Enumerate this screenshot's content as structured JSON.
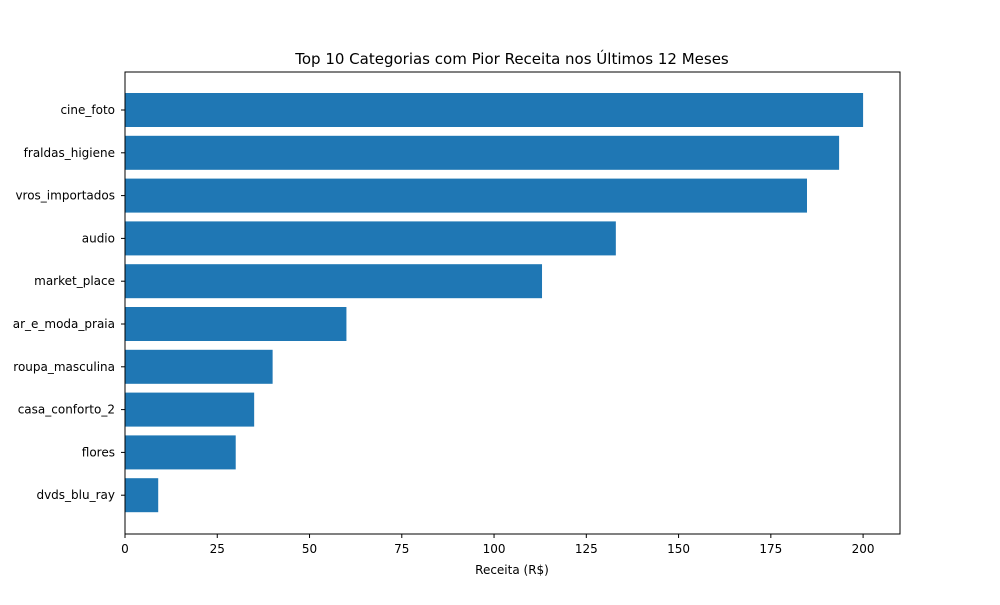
{
  "chart_data": {
    "type": "bar",
    "orientation": "horizontal",
    "title": "Top 10 Categorias com Pior Receita nos Últimos 12 Meses",
    "xlabel": "Receita (R$)",
    "ylabel": "",
    "categories": [
      "cine_foto",
      "fraldas_higiene",
      "livros_importados",
      "audio",
      "market_place",
      "fashion_roupa_e_moda_praia",
      "fashion_roupa_masculina",
      "casa_conforto_2",
      "flores",
      "dvds_blu_ray"
    ],
    "category_labels_visible": [
      "cine_foto",
      "fraldas_higiene",
      "vros_importados",
      "audio",
      "market_place",
      "ar_e_moda_praia",
      "roupa_masculina",
      "casa_conforto_2",
      "flores",
      "dvds_blu_ray"
    ],
    "values": [
      200,
      193.5,
      184.8,
      133,
      113,
      60,
      40,
      35,
      30,
      9
    ],
    "xlim": [
      0,
      210
    ],
    "xticks": [
      0,
      25,
      50,
      75,
      100,
      125,
      150,
      175,
      200
    ],
    "grid": false,
    "legend": "none",
    "bar_color": "#1f77b4"
  }
}
